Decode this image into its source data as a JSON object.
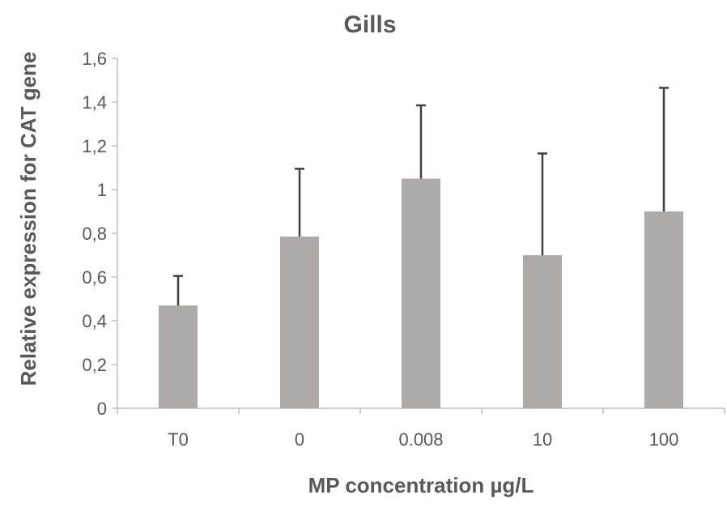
{
  "chart_data": {
    "type": "bar",
    "title": "Gills",
    "xlabel": "MP concentration µg/L",
    "ylabel": "Relative expression for CAT gene",
    "categories": [
      "T0",
      "0",
      "0.008",
      "10",
      "100"
    ],
    "values": [
      0.47,
      0.785,
      1.05,
      0.7,
      0.9
    ],
    "error_upper": [
      0.605,
      1.095,
      1.385,
      1.165,
      1.465
    ],
    "ylim": [
      0,
      1.6
    ],
    "yticks": [
      0,
      0.2,
      0.4,
      0.6,
      0.8,
      1,
      1.2,
      1.4,
      1.6
    ],
    "ytick_labels": [
      "0",
      "0,2",
      "0,4",
      "0,6",
      "0,8",
      "1",
      "1,2",
      "1,4",
      "1,6"
    ],
    "bar_color": "#aeaaaa",
    "error_bar_color": "#404040",
    "grid": false,
    "legend": "none"
  }
}
